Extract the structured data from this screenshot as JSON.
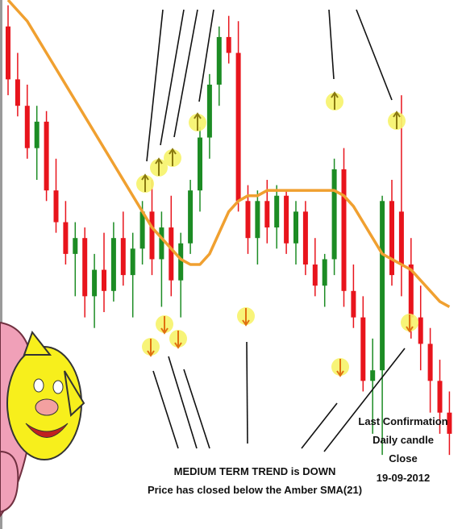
{
  "chart_data": {
    "type": "candlestick",
    "open": [
      95,
      85,
      80,
      72,
      77,
      64,
      58,
      52,
      55,
      44,
      49,
      45,
      55,
      48,
      53,
      60,
      51,
      57,
      47,
      54,
      64,
      74,
      84,
      93,
      90,
      62,
      55,
      62,
      57,
      63,
      54,
      60,
      50,
      46,
      51,
      68,
      45,
      40,
      28,
      30,
      62,
      60,
      50,
      40,
      35,
      28,
      22
    ],
    "high": [
      99,
      90,
      84,
      80,
      79,
      70,
      62,
      58,
      57,
      52,
      56,
      58,
      60,
      56,
      62,
      66,
      60,
      63,
      56,
      66,
      76,
      86,
      95,
      97,
      96,
      65,
      64,
      66,
      65,
      64,
      62,
      62,
      55,
      52,
      70,
      72,
      50,
      44,
      36,
      63,
      66,
      82,
      55,
      46,
      38,
      32,
      26
    ],
    "low": [
      82,
      78,
      70,
      66,
      62,
      56,
      50,
      44,
      40,
      38,
      41,
      43,
      46,
      40,
      50,
      48,
      42,
      44,
      40,
      52,
      60,
      70,
      80,
      88,
      60,
      52,
      50,
      54,
      53,
      52,
      50,
      48,
      44,
      42,
      48,
      42,
      38,
      26,
      18,
      14,
      46,
      44,
      36,
      30,
      22,
      18,
      14
    ],
    "close": [
      85,
      80,
      72,
      77,
      64,
      58,
      52,
      55,
      44,
      49,
      45,
      55,
      48,
      53,
      60,
      51,
      57,
      47,
      54,
      64,
      74,
      84,
      93,
      90,
      62,
      55,
      62,
      57,
      63,
      54,
      60,
      50,
      46,
      51,
      68,
      45,
      40,
      28,
      30,
      62,
      48,
      50,
      40,
      35,
      28,
      22,
      18
    ],
    "up_color": "#1c8c24",
    "down_color": "#e8141c",
    "sma": {
      "name": "SMA(21)",
      "color": "#f0a030",
      "values": [
        100,
        98,
        96,
        93,
        90,
        87,
        84,
        81,
        78,
        75,
        72,
        69,
        66,
        63,
        60,
        57,
        55,
        53,
        51,
        50,
        50,
        52,
        56,
        60,
        62,
        63,
        63,
        64,
        64,
        64,
        64,
        64,
        64,
        64,
        64,
        63,
        61,
        58,
        55,
        52,
        51,
        50,
        49,
        47,
        45,
        43,
        42
      ]
    },
    "ylim": [
      0,
      100
    ],
    "annotations": [
      "MEDIUM TERM TREND is DOWN",
      "Price has closed below the Amber SMA(21)",
      "Last Confirmation",
      "Daily candle",
      "Close",
      "19-09-2012"
    ]
  }
}
